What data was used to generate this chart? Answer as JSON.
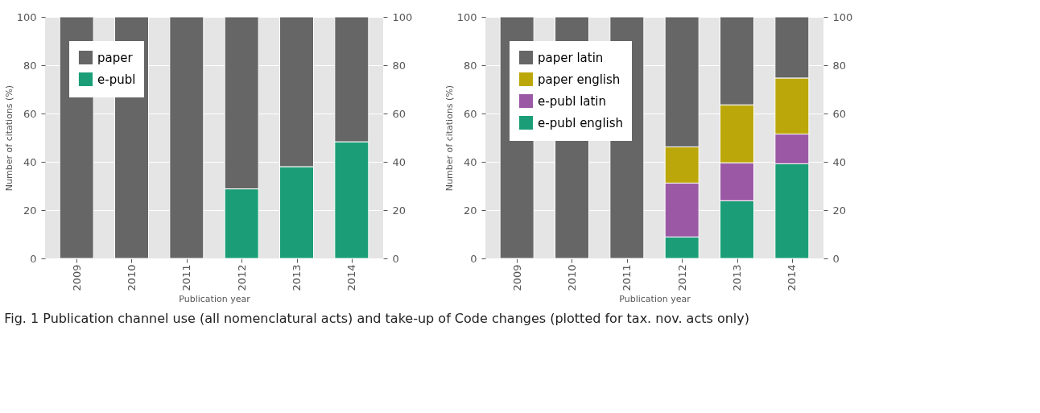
{
  "chart_data": [
    {
      "type": "bar",
      "stacked": true,
      "xlabel": "Publication year",
      "ylabel": "Number of citations (%)",
      "categories": [
        "2009",
        "2010",
        "2011",
        "2012",
        "2013",
        "2014"
      ],
      "series": [
        {
          "name": "e-publ",
          "color": "#1b9e77",
          "values": [
            0,
            0,
            0,
            28.8,
            38.0,
            48.3
          ]
        },
        {
          "name": "paper",
          "color": "#666666",
          "values": [
            100,
            100,
            100,
            71.2,
            62.0,
            51.7
          ]
        }
      ],
      "ylim": [
        0,
        100
      ],
      "yticks": [
        0,
        20,
        40,
        60,
        80,
        100
      ],
      "y2lim": [
        0,
        100
      ],
      "y2ticks": [
        0,
        20,
        40,
        60,
        80,
        100
      ],
      "grid": "y",
      "legend": "top left"
    },
    {
      "type": "bar",
      "stacked": true,
      "xlabel": "Publication year",
      "ylabel": "Number of citations (%)",
      "categories": [
        "2009",
        "2010",
        "2011",
        "2012",
        "2013",
        "2014"
      ],
      "series": [
        {
          "name": "e-publ english",
          "color": "#1b9e77",
          "values": [
            0,
            0,
            0,
            8.9,
            23.9,
            39.2
          ]
        },
        {
          "name": "e-publ latin",
          "color": "#9b59a5",
          "values": [
            0,
            0,
            0,
            22.3,
            15.7,
            12.3
          ]
        },
        {
          "name": "paper english",
          "color": "#bca70b",
          "values": [
            0,
            0,
            0,
            15.0,
            24.0,
            23.2
          ]
        },
        {
          "name": "paper latin",
          "color": "#666666",
          "values": [
            100,
            100,
            100,
            53.8,
            36.4,
            25.3
          ]
        }
      ],
      "ylim": [
        0,
        100
      ],
      "yticks": [
        0,
        20,
        40,
        60,
        80,
        100
      ],
      "y2lim": [
        0,
        100
      ],
      "y2ticks": [
        0,
        20,
        40,
        60,
        80,
        100
      ],
      "grid": "y",
      "legend": "top left",
      "annotations": [
        "Fig. 1 Publication channel use (all nomenclatural acts) and take-up of Code changes (plotted for tax. nov. acts only)"
      ]
    }
  ]
}
